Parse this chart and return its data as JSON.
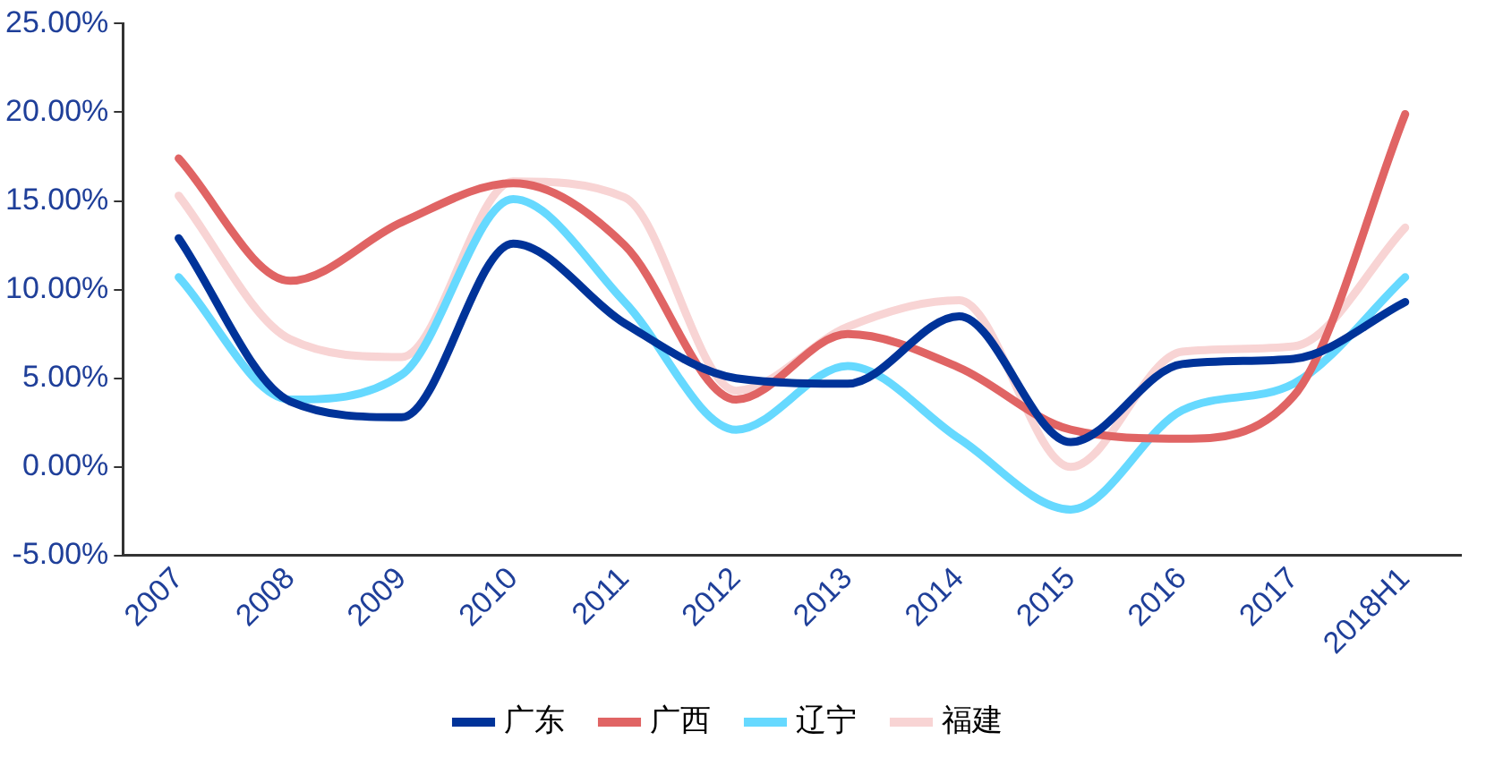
{
  "chart_data": {
    "type": "line",
    "categories": [
      "2007",
      "2008",
      "2009",
      "2010",
      "2011",
      "2012",
      "2013",
      "2014",
      "2015",
      "2016",
      "2017",
      "2018H1"
    ],
    "series": [
      {
        "name": "广东",
        "color": "#003399",
        "values": [
          12.9,
          3.7,
          2.8,
          12.6,
          8.1,
          5.0,
          4.7,
          8.5,
          1.4,
          5.8,
          6.1,
          9.3
        ]
      },
      {
        "name": "广西",
        "color": "#e06464",
        "values": [
          17.4,
          10.5,
          13.8,
          16.0,
          12.5,
          3.8,
          7.5,
          5.6,
          2.1,
          1.6,
          4.0,
          19.9
        ]
      },
      {
        "name": "辽宁",
        "color": "#66d9ff",
        "values": [
          10.7,
          3.8,
          5.2,
          15.1,
          9.3,
          2.1,
          5.7,
          1.6,
          -2.4,
          3.2,
          4.7,
          10.7
        ]
      },
      {
        "name": "福建",
        "color": "#f8d4d4",
        "values": [
          15.3,
          7.2,
          6.2,
          16.1,
          15.2,
          4.3,
          7.9,
          9.4,
          0.0,
          6.5,
          6.8,
          13.5
        ]
      }
    ],
    "ylim": [
      -5,
      25
    ],
    "yticks": [
      {
        "value": -5,
        "label": "-5.00%"
      },
      {
        "value": 0,
        "label": "0.00%"
      },
      {
        "value": 5,
        "label": "5.00%"
      },
      {
        "value": 10,
        "label": "10.00%"
      },
      {
        "value": 15,
        "label": "15.00%"
      },
      {
        "value": 20,
        "label": "20.00%"
      },
      {
        "value": 25,
        "label": "25.00%"
      }
    ],
    "grid": false,
    "legend": "bottom",
    "marker": "none",
    "line_style": "solid"
  }
}
